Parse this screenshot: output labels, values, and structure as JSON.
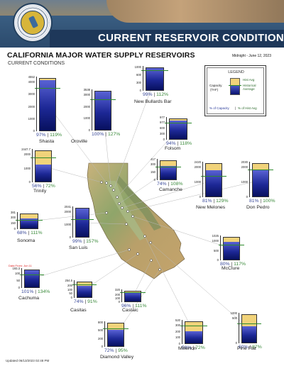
{
  "header": {
    "banner_title": "CURRENT RESERVOIR CONDITIONS",
    "seal_text": "DEPARTMENT OF WATER RESOURCES - STATE OF CALIFORNIA"
  },
  "title": "CALIFORNIA MAJOR WATER SUPPLY RESERVOIRS",
  "subtitle": "CURRENT CONDITIONS",
  "date": "Midnight - June 12, 2023",
  "footer": "Updated 06/13/2023 02:48 PM",
  "legend": {
    "title": "LEGEND",
    "hist_avg": "Hist Avg",
    "hist_label": "Historical",
    "hist_label2": "Average",
    "capacity_label": "Capacity",
    "capacity_unit": "(TAF)",
    "pct_capacity": "% of Capacity",
    "sep": "|",
    "pct_hist": "% of Hist Avg"
  },
  "colors": {
    "capacity_fill": "#f1d37a",
    "storage_fill": "#1d2896",
    "historical_line": "#2e8b2e",
    "banner_bar": "#1e3758"
  },
  "reservoirs": [
    {
      "id": "shasta",
      "name": "Shasta",
      "capacity_label": "4552",
      "ticks": [
        "4000",
        "3000",
        "2000",
        "1000",
        "0"
      ],
      "pct_capacity": "97%",
      "pct_hist": "119%",
      "fill_fraction": 0.97,
      "hist_fraction": 0.81
    },
    {
      "id": "oroville",
      "name": "Oroville",
      "capacity_label": "3538",
      "ticks": [
        "3000",
        "2000",
        "1000",
        "0"
      ],
      "pct_capacity": "100%",
      "pct_hist": "127%",
      "fill_fraction": 1.0,
      "hist_fraction": 0.79
    },
    {
      "id": "new_bullards_bar",
      "name": "New Bullards Bar",
      "capacity_label": "",
      "ticks": [
        "1000",
        "600",
        "300",
        "0"
      ],
      "pct_capacity": "99%",
      "pct_hist": "112%",
      "fill_fraction": 0.99,
      "hist_fraction": 0.88
    },
    {
      "id": "folsom",
      "name": "Folsom",
      "capacity_label": "977",
      "ticks": [
        "977",
        "600",
        "300",
        "0"
      ],
      "pct_capacity": "94%",
      "pct_hist": "118%",
      "fill_fraction": 0.94,
      "hist_fraction": 0.8
    },
    {
      "id": "trinity",
      "name": "Trinity",
      "capacity_label": "2447.7",
      "ticks": [
        "2000",
        "1000",
        "0"
      ],
      "pct_capacity": "56%",
      "pct_hist": "72%",
      "fill_fraction": 0.56,
      "hist_fraction": 0.78
    },
    {
      "id": "camanche",
      "name": "Camanche",
      "capacity_label": "417",
      "ticks": [
        "300",
        "150",
        "0"
      ],
      "pct_capacity": "74%",
      "pct_hist": "108%",
      "fill_fraction": 0.74,
      "hist_fraction": 0.69
    },
    {
      "id": "new_melones",
      "name": "New Melones",
      "capacity_label": "2420",
      "ticks": [
        "2000",
        "1000",
        "0"
      ],
      "pct_capacity": "81%",
      "pct_hist": "129%",
      "fill_fraction": 0.81,
      "hist_fraction": 0.63
    },
    {
      "id": "don_pedro",
      "name": "Don Pedro",
      "capacity_label": "2030",
      "ticks": [
        "2000",
        "1000",
        "0"
      ],
      "pct_capacity": "81%",
      "pct_hist": "100%",
      "fill_fraction": 0.81,
      "hist_fraction": 0.81
    },
    {
      "id": "sonoma",
      "name": "Sonoma",
      "capacity_label": "381",
      "ticks": [
        "300",
        "150",
        "0"
      ],
      "pct_capacity": "68%",
      "pct_hist": "111%",
      "fill_fraction": 0.68,
      "hist_fraction": 0.61
    },
    {
      "id": "san_luis",
      "name": "San Luis",
      "capacity_label": "2041",
      "ticks": [
        "2000",
        "1000",
        "0"
      ],
      "pct_capacity": "99%",
      "pct_hist": "157%",
      "fill_fraction": 0.99,
      "hist_fraction": 0.63
    },
    {
      "id": "mcclure",
      "name": "McClure",
      "capacity_label": "1025",
      "ticks": [
        "1000",
        "500",
        "0"
      ],
      "pct_capacity": "80%",
      "pct_hist": "117%",
      "fill_fraction": 0.8,
      "hist_fraction": 0.68
    },
    {
      "id": "cachuma",
      "name": "Cachuma",
      "capacity_label": "193.3",
      "ticks": [
        "100",
        "50",
        "0"
      ],
      "pct_capacity": "101%",
      "pct_hist": "134%",
      "fill_fraction": 1.0,
      "hist_fraction": 0.75,
      "note": "Data From: Jun 11"
    },
    {
      "id": "castaic",
      "name": "Castaic",
      "capacity_label": "320",
      "ticks": [
        "200",
        "100",
        "0"
      ],
      "pct_capacity": "96%",
      "pct_hist": "111%",
      "fill_fraction": 0.96,
      "hist_fraction": 0.86
    },
    {
      "id": "casitas",
      "name": "Casitas",
      "capacity_label": "254.5",
      "ticks": [
        "200",
        "100",
        "50",
        "0"
      ],
      "pct_capacity": "74%",
      "pct_hist": "91%",
      "fill_fraction": 0.74,
      "hist_fraction": 0.81
    },
    {
      "id": "diamond_valley",
      "name": "Diamond Valley",
      "capacity_label": "",
      "ticks": [
        "800",
        "500",
        "200",
        "0"
      ],
      "pct_capacity": "72%",
      "pct_hist": "95%",
      "fill_fraction": 0.72,
      "hist_fraction": 0.76
    },
    {
      "id": "millerton",
      "name": "Millerton",
      "capacity_label": "520",
      "ticks": [
        "300",
        "200",
        "100",
        "0"
      ],
      "pct_capacity": "58%",
      "pct_hist": "72%",
      "fill_fraction": 0.58,
      "hist_fraction": 0.8
    },
    {
      "id": "pine_flat",
      "name": "Pine Flat",
      "capacity_label": "1000",
      "ticks": [
        "500",
        "0"
      ],
      "pct_capacity": "60%",
      "pct_hist": "87%",
      "fill_fraction": 0.6,
      "hist_fraction": 0.69
    }
  ]
}
